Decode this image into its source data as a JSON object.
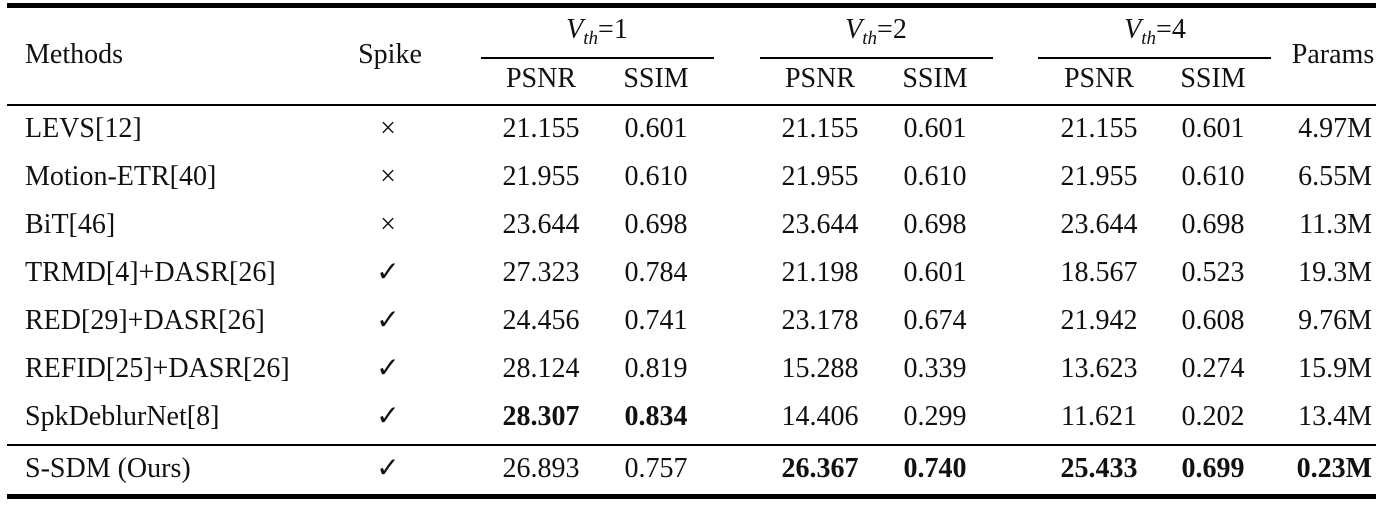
{
  "table": {
    "header": {
      "methods": "Methods",
      "spike": "Spike",
      "params": "Params",
      "groups": [
        {
          "v": "V",
          "sub": "th",
          "rest": "=1"
        },
        {
          "v": "V",
          "sub": "th",
          "rest": "=2"
        },
        {
          "v": "V",
          "sub": "th",
          "rest": "=4"
        }
      ],
      "psnr": "PSNR",
      "ssim": "SSIM"
    },
    "rows": [
      {
        "method": "LEVS[12]",
        "spike": "×",
        "v1_psnr": "21.155",
        "v1_ssim": "0.601",
        "v2_psnr": "21.155",
        "v2_ssim": "0.601",
        "v4_psnr": "21.155",
        "v4_ssim": "0.601",
        "params": "4.97M",
        "bold": []
      },
      {
        "method": "Motion-ETR[40]",
        "spike": "×",
        "v1_psnr": "21.955",
        "v1_ssim": "0.610",
        "v2_psnr": "21.955",
        "v2_ssim": "0.610",
        "v4_psnr": "21.955",
        "v4_ssim": "0.610",
        "params": "6.55M",
        "bold": []
      },
      {
        "method": "BiT[46]",
        "spike": "×",
        "v1_psnr": "23.644",
        "v1_ssim": "0.698",
        "v2_psnr": "23.644",
        "v2_ssim": "0.698",
        "v4_psnr": "23.644",
        "v4_ssim": "0.698",
        "params": "11.3M",
        "bold": []
      },
      {
        "method": "TRMD[4]+DASR[26]",
        "spike": "✓",
        "v1_psnr": "27.323",
        "v1_ssim": "0.784",
        "v2_psnr": "21.198",
        "v2_ssim": "0.601",
        "v4_psnr": "18.567",
        "v4_ssim": "0.523",
        "params": "19.3M",
        "bold": []
      },
      {
        "method": "RED[29]+DASR[26]",
        "spike": "✓",
        "v1_psnr": "24.456",
        "v1_ssim": "0.741",
        "v2_psnr": "23.178",
        "v2_ssim": "0.674",
        "v4_psnr": "21.942",
        "v4_ssim": "0.608",
        "params": "9.76M",
        "bold": []
      },
      {
        "method": "REFID[25]+DASR[26]",
        "spike": "✓",
        "v1_psnr": "28.124",
        "v1_ssim": "0.819",
        "v2_psnr": "15.288",
        "v2_ssim": "0.339",
        "v4_psnr": "13.623",
        "v4_ssim": "0.274",
        "params": "15.9M",
        "bold": []
      },
      {
        "method": "SpkDeblurNet[8]",
        "spike": "✓",
        "v1_psnr": "28.307",
        "v1_ssim": "0.834",
        "v2_psnr": "14.406",
        "v2_ssim": "0.299",
        "v4_psnr": "11.621",
        "v4_ssim": "0.202",
        "params": "13.4M",
        "bold": [
          "v1_psnr",
          "v1_ssim"
        ]
      },
      {
        "method": "S-SDM (Ours)",
        "spike": "✓",
        "v1_psnr": "26.893",
        "v1_ssim": "0.757",
        "v2_psnr": "26.367",
        "v2_ssim": "0.740",
        "v4_psnr": "25.433",
        "v4_ssim": "0.699",
        "params": "0.23M",
        "bold": [
          "v2_psnr",
          "v2_ssim",
          "v4_psnr",
          "v4_ssim",
          "params"
        ]
      }
    ]
  }
}
